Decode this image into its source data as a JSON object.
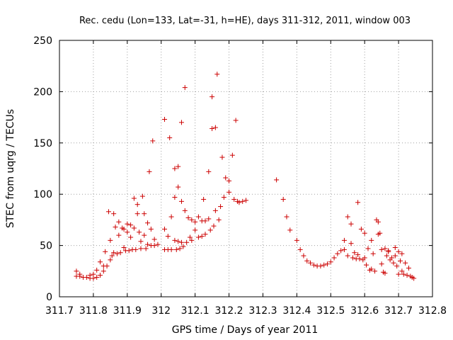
{
  "chart_data": {
    "type": "scatter",
    "title": "Rec. cedu (Lon=133, Lat=-31, h=HE), days 311-312, 2011, window 003",
    "xlabel": "GPS time / Days of year 2011",
    "ylabel": "STEC from uqrg / TECUs",
    "xlim": [
      311.7,
      312.8
    ],
    "ylim": [
      0,
      250
    ],
    "x_ticks": [
      "311.7",
      "311.8",
      "311.9",
      "312",
      "312.1",
      "312.2",
      "312.3",
      "312.4",
      "312.5",
      "312.6",
      "312.7",
      "312.8"
    ],
    "y_ticks": [
      "0",
      "50",
      "100",
      "150",
      "200",
      "250"
    ],
    "grid": true,
    "marker": "plus",
    "marker_color": "#cc0000",
    "series": [
      {
        "points": [
          [
            311.75,
            25
          ],
          [
            311.75,
            20
          ],
          [
            311.76,
            22
          ],
          [
            311.76,
            20
          ],
          [
            311.77,
            19
          ],
          [
            311.78,
            19
          ],
          [
            311.79,
            21
          ],
          [
            311.79,
            18
          ],
          [
            311.8,
            18
          ],
          [
            311.8,
            22
          ],
          [
            311.81,
            26
          ],
          [
            311.81,
            19
          ],
          [
            311.82,
            34
          ],
          [
            311.82,
            21
          ],
          [
            311.83,
            30
          ],
          [
            311.83,
            25
          ],
          [
            311.835,
            44
          ],
          [
            311.84,
            30
          ],
          [
            311.845,
            83
          ],
          [
            311.85,
            36
          ],
          [
            311.85,
            55
          ],
          [
            311.855,
            40
          ],
          [
            311.86,
            81
          ],
          [
            311.86,
            43
          ],
          [
            311.865,
            68
          ],
          [
            311.87,
            42
          ],
          [
            311.875,
            73
          ],
          [
            311.875,
            60
          ],
          [
            311.88,
            43
          ],
          [
            311.885,
            67
          ],
          [
            311.89,
            48
          ],
          [
            311.89,
            66
          ],
          [
            311.895,
            45
          ],
          [
            311.9,
            71
          ],
          [
            311.9,
            63
          ],
          [
            311.905,
            45
          ],
          [
            311.91,
            70
          ],
          [
            311.91,
            58
          ],
          [
            311.915,
            46
          ],
          [
            311.92,
            96
          ],
          [
            311.92,
            67
          ],
          [
            311.925,
            46
          ],
          [
            311.93,
            90
          ],
          [
            311.93,
            81
          ],
          [
            311.935,
            63
          ],
          [
            311.94,
            54
          ],
          [
            311.94,
            47
          ],
          [
            311.945,
            98
          ],
          [
            311.95,
            81
          ],
          [
            311.95,
            60
          ],
          [
            311.955,
            47
          ],
          [
            311.96,
            72
          ],
          [
            311.96,
            51
          ],
          [
            311.965,
            122
          ],
          [
            311.97,
            66
          ],
          [
            311.97,
            50
          ],
          [
            311.975,
            152
          ],
          [
            311.98,
            56
          ],
          [
            311.98,
            50
          ],
          [
            311.99,
            51
          ],
          [
            312.01,
            173
          ],
          [
            312.01,
            66
          ],
          [
            312.01,
            46
          ],
          [
            312.02,
            59
          ],
          [
            312.02,
            46
          ],
          [
            312.025,
            155
          ],
          [
            312.03,
            78
          ],
          [
            312.03,
            46
          ],
          [
            312.04,
            125
          ],
          [
            312.04,
            97
          ],
          [
            312.04,
            55
          ],
          [
            312.045,
            46
          ],
          [
            312.05,
            127
          ],
          [
            312.05,
            107
          ],
          [
            312.05,
            54
          ],
          [
            312.055,
            47
          ],
          [
            312.06,
            170
          ],
          [
            312.06,
            93
          ],
          [
            312.06,
            53
          ],
          [
            312.065,
            49
          ],
          [
            312.07,
            204
          ],
          [
            312.07,
            84
          ],
          [
            312.075,
            53
          ],
          [
            312.08,
            77
          ],
          [
            312.085,
            58
          ],
          [
            312.09,
            55
          ],
          [
            312.09,
            75
          ],
          [
            312.1,
            73
          ],
          [
            312.1,
            65
          ],
          [
            312.11,
            78
          ],
          [
            312.11,
            58
          ],
          [
            312.12,
            74
          ],
          [
            312.12,
            59
          ],
          [
            312.125,
            95
          ],
          [
            312.13,
            74
          ],
          [
            312.13,
            61
          ],
          [
            312.14,
            122
          ],
          [
            312.14,
            76
          ],
          [
            312.145,
            65
          ],
          [
            312.15,
            195
          ],
          [
            312.15,
            164
          ],
          [
            312.155,
            69
          ],
          [
            312.16,
            165
          ],
          [
            312.16,
            84
          ],
          [
            312.165,
            217
          ],
          [
            312.17,
            75
          ],
          [
            312.175,
            88
          ],
          [
            312.18,
            136
          ],
          [
            312.185,
            97
          ],
          [
            312.19,
            116
          ],
          [
            312.2,
            113
          ],
          [
            312.2,
            102
          ],
          [
            312.21,
            138
          ],
          [
            312.215,
            95
          ],
          [
            312.22,
            172
          ],
          [
            312.225,
            93
          ],
          [
            312.23,
            92
          ],
          [
            312.24,
            93
          ],
          [
            312.25,
            94
          ],
          [
            312.34,
            114
          ],
          [
            312.36,
            95
          ],
          [
            312.37,
            78
          ],
          [
            312.38,
            65
          ],
          [
            312.4,
            55
          ],
          [
            312.41,
            46
          ],
          [
            312.42,
            40
          ],
          [
            312.43,
            35
          ],
          [
            312.44,
            33
          ],
          [
            312.45,
            31
          ],
          [
            312.46,
            30
          ],
          [
            312.47,
            30
          ],
          [
            312.48,
            31
          ],
          [
            312.49,
            32
          ],
          [
            312.5,
            34
          ],
          [
            312.51,
            38
          ],
          [
            312.52,
            42
          ],
          [
            312.53,
            45
          ],
          [
            312.54,
            46
          ],
          [
            312.54,
            55
          ],
          [
            312.55,
            78
          ],
          [
            312.55,
            40
          ],
          [
            312.56,
            71
          ],
          [
            312.56,
            52
          ],
          [
            312.565,
            38
          ],
          [
            312.57,
            43
          ],
          [
            312.575,
            37
          ],
          [
            312.58,
            92
          ],
          [
            312.58,
            41
          ],
          [
            312.585,
            37
          ],
          [
            312.59,
            66
          ],
          [
            312.595,
            36
          ],
          [
            312.6,
            62
          ],
          [
            312.6,
            38
          ],
          [
            312.605,
            31
          ],
          [
            312.61,
            47
          ],
          [
            312.615,
            26
          ],
          [
            312.62,
            55
          ],
          [
            312.62,
            27
          ],
          [
            312.625,
            42
          ],
          [
            312.63,
            25
          ],
          [
            312.635,
            75
          ],
          [
            312.64,
            73
          ],
          [
            312.64,
            61
          ],
          [
            312.645,
            62
          ],
          [
            312.65,
            46
          ],
          [
            312.65,
            32
          ],
          [
            312.655,
            24
          ],
          [
            312.66,
            47
          ],
          [
            312.66,
            23
          ],
          [
            312.665,
            40
          ],
          [
            312.67,
            44
          ],
          [
            312.67,
            45
          ],
          [
            312.675,
            36
          ],
          [
            312.68,
            38
          ],
          [
            312.685,
            33
          ],
          [
            312.69,
            40
          ],
          [
            312.695,
            30
          ],
          [
            312.7,
            22
          ],
          [
            312.705,
            35
          ],
          [
            312.71,
            25
          ],
          [
            312.715,
            22
          ],
          [
            312.72,
            33
          ],
          [
            312.725,
            21
          ],
          [
            312.73,
            28
          ],
          [
            312.735,
            20
          ],
          [
            312.74,
            19
          ],
          [
            312.745,
            18
          ],
          [
            312.69,
            48
          ],
          [
            312.7,
            44
          ],
          [
            312.71,
            42
          ]
        ]
      }
    ]
  }
}
